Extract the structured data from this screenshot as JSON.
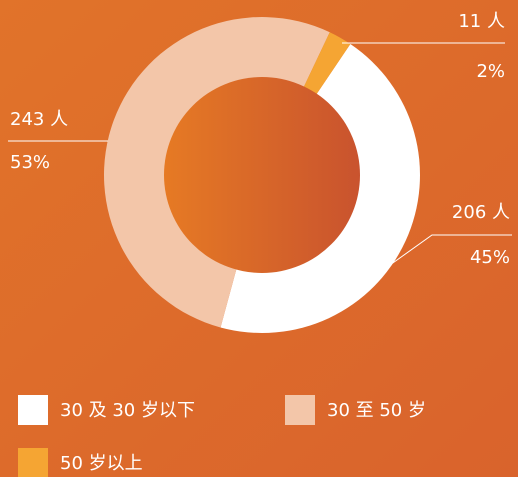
{
  "chart_data": {
    "type": "donut",
    "categories": [
      "30 及 30 岁以下",
      "30 至 50 岁",
      "50 岁以上"
    ],
    "values": [
      206,
      243,
      11
    ],
    "value_labels": [
      "206 人",
      "243 人",
      "11 人"
    ],
    "percentages": [
      45,
      53,
      2
    ],
    "percentage_labels": [
      "45%",
      "53%",
      "2%"
    ],
    "colors": [
      "#ffffff",
      "#f3c6a9",
      "#f5a533"
    ],
    "legend": "bottom"
  }
}
